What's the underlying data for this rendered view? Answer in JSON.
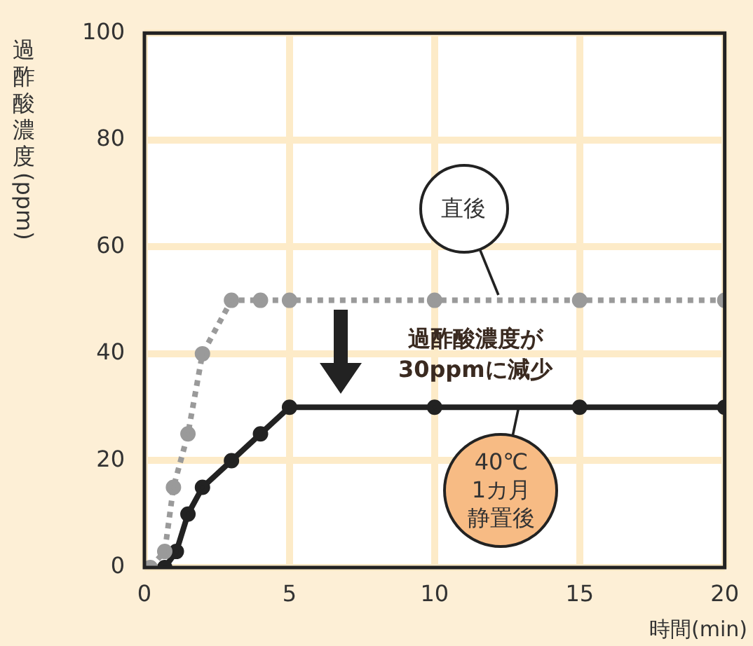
{
  "chart_data": {
    "type": "line",
    "xlabel": "時間(min)",
    "ylabel": "過酢酸濃度(ppm)",
    "xlim": [
      0,
      20
    ],
    "xticks": [
      0,
      5,
      10,
      15,
      20
    ],
    "ylim": [
      0,
      100
    ],
    "yticks": [
      0,
      20,
      40,
      60,
      80,
      100
    ],
    "grid": true,
    "legend": false,
    "marker": "circle",
    "series": [
      {
        "name": "直後",
        "color": "#9a9a9a",
        "line_style": "dotted",
        "x": [
          0.2,
          0.7,
          1,
          1.5,
          2,
          3,
          4,
          5,
          10,
          15,
          20
        ],
        "values": [
          0,
          3,
          15,
          25,
          40,
          50,
          50,
          50,
          50,
          50,
          50
        ]
      },
      {
        "name": "40℃1カ月静置後",
        "color": "#222222",
        "line_style": "solid",
        "x": [
          0.7,
          1.1,
          1.5,
          2,
          3,
          4,
          5,
          10,
          15,
          20
        ],
        "values": [
          0,
          3,
          10,
          15,
          20,
          25,
          30,
          30,
          30,
          30
        ]
      }
    ],
    "annotations": [
      "過酢酸濃度が\n30ppmに減少"
    ]
  }
}
